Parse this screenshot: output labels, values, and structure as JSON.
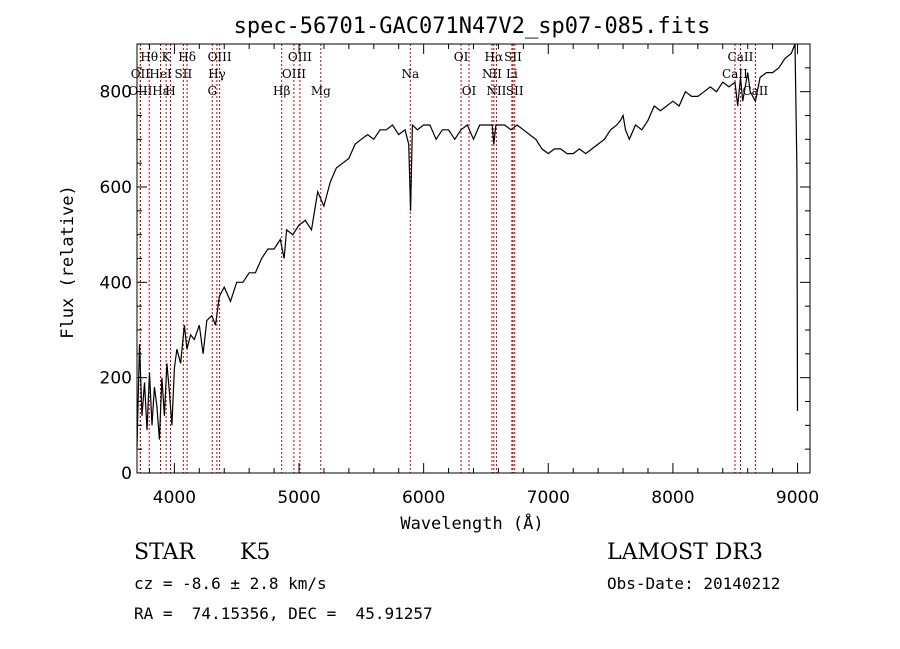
{
  "chart_data": {
    "type": "line",
    "title": "spec-56701-GAC071N47V2_sp07-085.fits",
    "xlabel": "Wavelength (Å)",
    "ylabel": "Flux (relative)",
    "xlim": [
      3700,
      9100
    ],
    "ylim": [
      0,
      900
    ],
    "xticks": [
      4000,
      5000,
      6000,
      7000,
      8000,
      9000
    ],
    "yticks": [
      0,
      200,
      400,
      600,
      800
    ],
    "series": [
      {
        "name": "flux",
        "x": [
          3700,
          3720,
          3740,
          3760,
          3780,
          3800,
          3820,
          3840,
          3860,
          3880,
          3900,
          3920,
          3940,
          3960,
          3980,
          4000,
          4020,
          4050,
          4080,
          4100,
          4130,
          4160,
          4200,
          4230,
          4260,
          4300,
          4330,
          4360,
          4400,
          4450,
          4500,
          4550,
          4600,
          4650,
          4700,
          4750,
          4800,
          4850,
          4880,
          4900,
          4950,
          5000,
          5050,
          5100,
          5150,
          5200,
          5250,
          5300,
          5350,
          5400,
          5450,
          5500,
          5550,
          5600,
          5650,
          5700,
          5750,
          5800,
          5850,
          5880,
          5895,
          5910,
          5950,
          6000,
          6050,
          6100,
          6150,
          6200,
          6250,
          6300,
          6350,
          6400,
          6450,
          6500,
          6550,
          6563,
          6580,
          6600,
          6650,
          6700,
          6750,
          6800,
          6850,
          6900,
          6950,
          7000,
          7050,
          7100,
          7150,
          7200,
          7250,
          7300,
          7350,
          7400,
          7450,
          7500,
          7550,
          7580,
          7600,
          7620,
          7650,
          7700,
          7750,
          7800,
          7850,
          7900,
          7950,
          8000,
          8050,
          8100,
          8150,
          8200,
          8250,
          8300,
          8350,
          8400,
          8450,
          8498,
          8520,
          8542,
          8560,
          8600,
          8620,
          8662,
          8700,
          8750,
          8800,
          8850,
          8900,
          8950,
          8980,
          8995,
          9000
        ],
        "y": [
          55,
          270,
          120,
          190,
          90,
          210,
          100,
          180,
          140,
          70,
          200,
          120,
          230,
          170,
          100,
          220,
          260,
          230,
          310,
          260,
          290,
          280,
          310,
          250,
          320,
          330,
          310,
          370,
          390,
          360,
          400,
          400,
          420,
          420,
          450,
          470,
          470,
          490,
          450,
          510,
          500,
          520,
          530,
          510,
          590,
          560,
          610,
          640,
          650,
          660,
          690,
          700,
          710,
          700,
          720,
          720,
          730,
          710,
          720,
          690,
          550,
          730,
          720,
          730,
          730,
          700,
          720,
          720,
          700,
          720,
          730,
          700,
          730,
          730,
          730,
          690,
          730,
          730,
          730,
          720,
          730,
          720,
          710,
          700,
          680,
          670,
          680,
          680,
          670,
          670,
          680,
          670,
          680,
          690,
          700,
          720,
          730,
          740,
          750,
          720,
          700,
          730,
          720,
          740,
          770,
          760,
          770,
          780,
          770,
          800,
          790,
          790,
          800,
          810,
          800,
          820,
          810,
          820,
          770,
          830,
          780,
          840,
          800,
          780,
          830,
          840,
          840,
          850,
          870,
          880,
          900,
          640,
          130
        ]
      }
    ],
    "emission_lines": [
      {
        "label": "Hθ",
        "x": 3798,
        "row": 1
      },
      {
        "label": "OII",
        "x": 3727,
        "row": 2
      },
      {
        "label": "OIII",
        "x": 3727,
        "row": 3
      },
      {
        "label": "Hε",
        "x": 3889,
        "row": 3
      },
      {
        "label": "HeI",
        "x": 3889,
        "row": 2
      },
      {
        "label": "K",
        "x": 3934,
        "row": 1
      },
      {
        "label": "H",
        "x": 3969,
        "row": 3
      },
      {
        "label": "Hδ",
        "x": 4102,
        "row": 1
      },
      {
        "label": "SII",
        "x": 4072,
        "row": 2
      },
      {
        "label": "OIII",
        "x": 4363,
        "row": 1
      },
      {
        "label": "Hγ",
        "x": 4341,
        "row": 2
      },
      {
        "label": "G",
        "x": 4304,
        "row": 3
      },
      {
        "label": "Hβ",
        "x": 4861,
        "row": 3
      },
      {
        "label": "OIII",
        "x": 5007,
        "row": 1
      },
      {
        "label": "OIII",
        "x": 4959,
        "row": 2
      },
      {
        "label": "Mg",
        "x": 5175,
        "row": 3
      },
      {
        "label": "Na",
        "x": 5893,
        "row": 2
      },
      {
        "label": "OI",
        "x": 6300,
        "row": 1
      },
      {
        "label": "OI",
        "x": 6364,
        "row": 3
      },
      {
        "label": "Hα",
        "x": 6563,
        "row": 1
      },
      {
        "label": "NII",
        "x": 6548,
        "row": 2
      },
      {
        "label": "NII",
        "x": 6584,
        "row": 3
      },
      {
        "label": "SII",
        "x": 6717,
        "row": 1
      },
      {
        "label": "Li",
        "x": 6708,
        "row": 2
      },
      {
        "label": "SII",
        "x": 6731,
        "row": 3
      },
      {
        "label": "CaII",
        "x": 8542,
        "row": 1
      },
      {
        "label": "CaII",
        "x": 8498,
        "row": 2
      },
      {
        "label": "CaII",
        "x": 8662,
        "row": 3
      }
    ]
  },
  "info": {
    "object_class": "STAR",
    "subclass": "K5",
    "survey": "LAMOST DR3",
    "redshift_line": "cz = -8.6 ± 2.8 km/s",
    "obs_date_line": "Obs-Date: 20140212",
    "coords_line": "RA =  74.15356, DEC =  45.91257"
  },
  "colors": {
    "spectrum": "#000000",
    "line_markers": "#c00000",
    "axes": "#000000"
  }
}
